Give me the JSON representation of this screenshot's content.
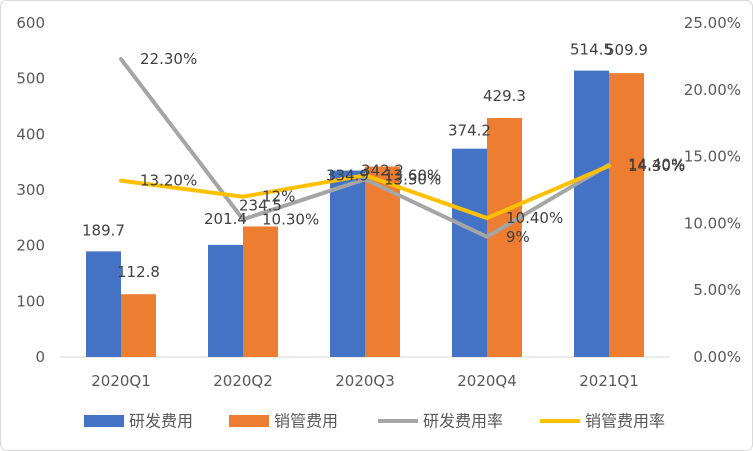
{
  "chart_data": {
    "type": "bar",
    "categories": [
      "2020Q1",
      "2020Q2",
      "2020Q3",
      "2020Q4",
      "2021Q1"
    ],
    "y_left": {
      "range": [
        0,
        600
      ],
      "ticks": [
        "0",
        "100",
        "200",
        "300",
        "400",
        "500",
        "600"
      ]
    },
    "y_right": {
      "range": [
        0,
        25
      ],
      "ticks": [
        "0.00%",
        "5.00%",
        "10.00%",
        "15.00%",
        "20.00%",
        "25.00%"
      ]
    },
    "grid": false,
    "legend": "bottom",
    "series": [
      {
        "name": "研发费用",
        "type": "bar",
        "axis": "left",
        "color": "#4472C4",
        "values": [
          189.7,
          201.4,
          334.9,
          374.2,
          514.5
        ],
        "labels": [
          "189.7",
          "201.4",
          "334.9",
          "374.2",
          "514.5"
        ]
      },
      {
        "name": "销管费用",
        "type": "bar",
        "axis": "left",
        "color": "#ED7D31",
        "values": [
          112.8,
          234.5,
          342.2,
          429.3,
          509.9
        ],
        "labels": [
          "112.8",
          "234.5",
          "342.2",
          "429.3",
          "509.9"
        ]
      },
      {
        "name": "研发费用率",
        "type": "line",
        "axis": "right",
        "color": "#A5A5A5",
        "values": [
          22.3,
          10.3,
          13.3,
          9.0,
          14.4
        ],
        "labels": [
          "22.30%",
          "10.30%",
          "13.30%",
          "9%",
          "14.40%"
        ]
      },
      {
        "name": "销管费用率",
        "type": "line",
        "axis": "right",
        "color": "#FFC000",
        "values": [
          13.2,
          12.0,
          13.6,
          10.4,
          14.3
        ],
        "labels": [
          "13.20%",
          "12%",
          "13.60%",
          "10.40%",
          "14.30%"
        ]
      }
    ]
  }
}
